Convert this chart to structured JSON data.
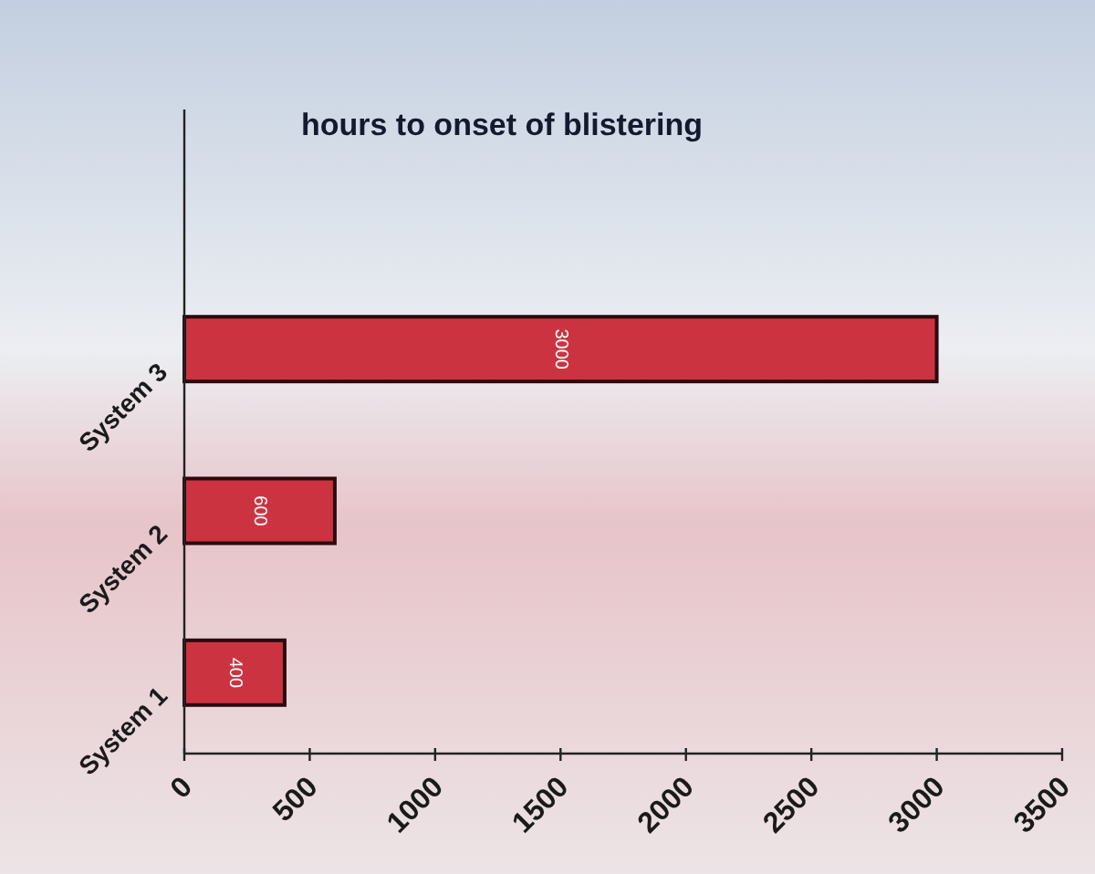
{
  "chart_data": {
    "type": "bar",
    "orientation": "horizontal",
    "title": "hours to onset of blistering",
    "categories": [
      "System 3",
      "System 2",
      "System 1"
    ],
    "values": [
      3000,
      600,
      400
    ],
    "color": "#cc3340",
    "xlim": [
      0,
      3500
    ],
    "xticks": [
      0,
      500,
      1000,
      1500,
      2000,
      2500,
      3000,
      3500
    ],
    "data_labels": true
  }
}
